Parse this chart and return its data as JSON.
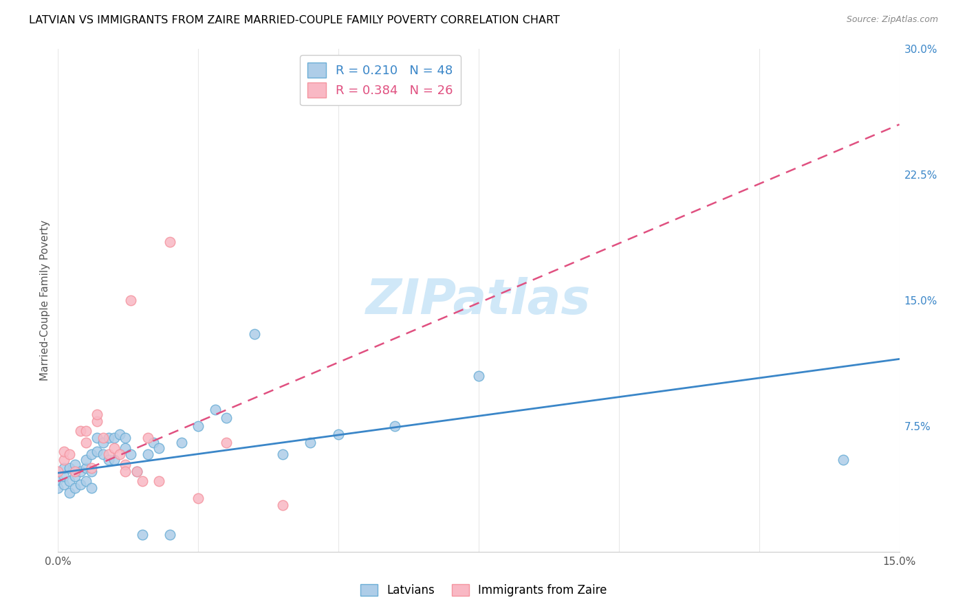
{
  "title": "LATVIAN VS IMMIGRANTS FROM ZAIRE MARRIED-COUPLE FAMILY POVERTY CORRELATION CHART",
  "source": "Source: ZipAtlas.com",
  "ylabel": "Married-Couple Family Poverty",
  "x_min": 0.0,
  "x_max": 0.15,
  "y_min": 0.0,
  "y_max": 0.3,
  "x_ticks": [
    0.0,
    0.025,
    0.05,
    0.075,
    0.1,
    0.125,
    0.15
  ],
  "x_tick_labels": [
    "0.0%",
    "",
    "",
    "",
    "",
    "",
    "15.0%"
  ],
  "y_tick_labels_right": [
    "7.5%",
    "15.0%",
    "22.5%",
    "30.0%"
  ],
  "y_tick_vals_right": [
    0.075,
    0.15,
    0.225,
    0.3
  ],
  "legend_R1": "0.210",
  "legend_N1": "48",
  "legend_R2": "0.384",
  "legend_N2": "26",
  "latvian_color": "#aecde8",
  "zaire_color": "#f9b8c4",
  "latvian_edge_color": "#6baed6",
  "zaire_edge_color": "#f4949f",
  "latvian_line_color": "#3a86c8",
  "zaire_line_color": "#e05080",
  "watermark_color": "#d0e8f8",
  "lat_line_x": [
    0.0,
    0.15
  ],
  "lat_line_y": [
    0.047,
    0.115
  ],
  "zaire_line_x": [
    0.0,
    0.15
  ],
  "zaire_line_y": [
    0.042,
    0.255
  ],
  "latvians_x": [
    0.0,
    0.0,
    0.001,
    0.001,
    0.001,
    0.002,
    0.002,
    0.002,
    0.003,
    0.003,
    0.003,
    0.004,
    0.004,
    0.005,
    0.005,
    0.005,
    0.006,
    0.006,
    0.006,
    0.007,
    0.007,
    0.008,
    0.008,
    0.009,
    0.009,
    0.01,
    0.01,
    0.011,
    0.012,
    0.012,
    0.013,
    0.014,
    0.015,
    0.016,
    0.017,
    0.018,
    0.02,
    0.022,
    0.025,
    0.028,
    0.03,
    0.035,
    0.04,
    0.045,
    0.05,
    0.06,
    0.075,
    0.14
  ],
  "latvians_y": [
    0.038,
    0.043,
    0.04,
    0.045,
    0.05,
    0.035,
    0.042,
    0.05,
    0.038,
    0.045,
    0.052,
    0.04,
    0.048,
    0.042,
    0.05,
    0.055,
    0.038,
    0.048,
    0.058,
    0.06,
    0.068,
    0.058,
    0.065,
    0.055,
    0.068,
    0.055,
    0.068,
    0.07,
    0.062,
    0.068,
    0.058,
    0.048,
    0.01,
    0.058,
    0.065,
    0.062,
    0.01,
    0.065,
    0.075,
    0.085,
    0.08,
    0.13,
    0.058,
    0.065,
    0.07,
    0.075,
    0.105,
    0.055
  ],
  "zaire_x": [
    0.0,
    0.001,
    0.001,
    0.002,
    0.003,
    0.004,
    0.005,
    0.005,
    0.006,
    0.007,
    0.007,
    0.008,
    0.009,
    0.01,
    0.011,
    0.012,
    0.012,
    0.013,
    0.014,
    0.015,
    0.016,
    0.018,
    0.02,
    0.025,
    0.03,
    0.04
  ],
  "zaire_y": [
    0.048,
    0.055,
    0.06,
    0.058,
    0.048,
    0.072,
    0.065,
    0.072,
    0.05,
    0.078,
    0.082,
    0.068,
    0.058,
    0.062,
    0.058,
    0.052,
    0.048,
    0.15,
    0.048,
    0.042,
    0.068,
    0.042,
    0.185,
    0.032,
    0.065,
    0.028
  ]
}
